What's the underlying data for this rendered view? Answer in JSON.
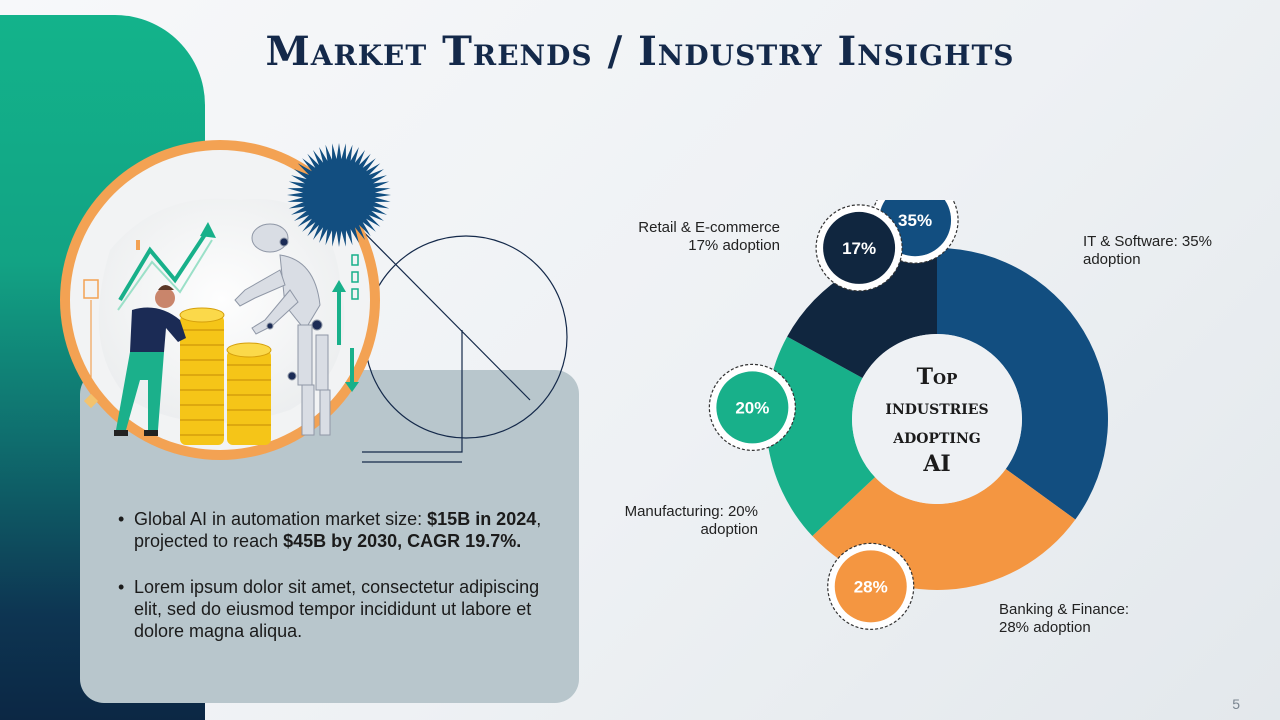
{
  "title": "Market Trends / Industry Insights",
  "bullets": [
    {
      "p1": "Global AI in automation market size: ",
      "b1": "$15B in 2024",
      "p2": ", projected to reach ",
      "b2": "$45B by 2030, CAGR 19.7%."
    },
    {
      "text": "Lorem ipsum dolor sit amet, consectetur adipiscing elit, sed do eiusmod tempor incididunt ut labore et dolore magna aliqua."
    }
  ],
  "page_number": "5",
  "chart_data": {
    "type": "pie",
    "center_label": [
      "Top",
      "industries",
      "adopting",
      "AI"
    ],
    "slices": [
      {
        "name": "IT & Software",
        "value": 35,
        "badge": "35%",
        "label": [
          "IT & Software: 35%",
          "adoption"
        ],
        "color": "#124e80"
      },
      {
        "name": "Banking & Finance",
        "value": 28,
        "badge": "28%",
        "label": [
          "Banking & Finance:",
          "28% adoption"
        ],
        "color": "#f49641"
      },
      {
        "name": "Manufacturing",
        "value": 20,
        "badge": "20%",
        "label": [
          "Manufacturing: 20%",
          "adoption"
        ],
        "color": "#18b08a"
      },
      {
        "name": "Retail & E-commerce",
        "value": 17,
        "badge": "17%",
        "label": [
          "Retail & E-commerce",
          "17% adoption"
        ],
        "color": "#10263f"
      }
    ]
  },
  "colors": {
    "navy": "#14294a",
    "green": "#13b38b",
    "orange": "#f49641",
    "panel": "#b8c6cc"
  }
}
